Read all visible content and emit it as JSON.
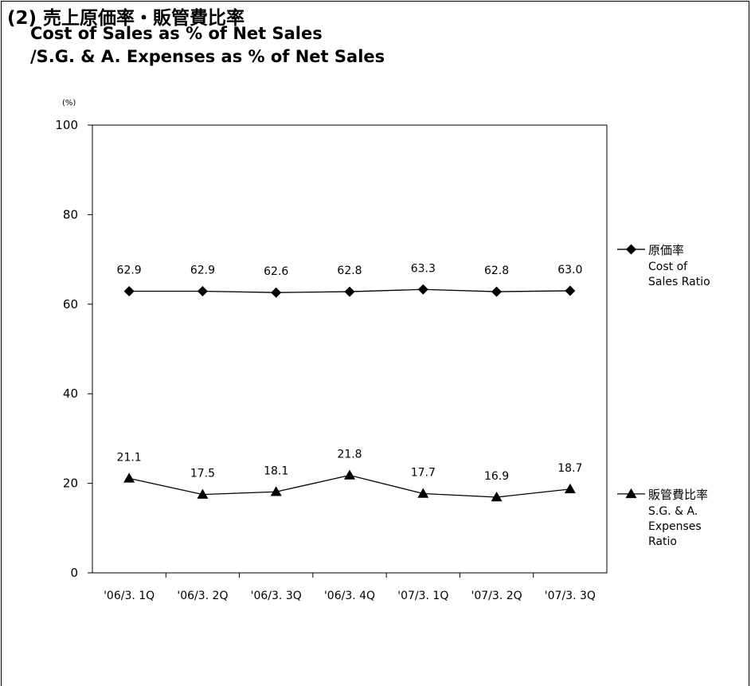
{
  "title": {
    "jp": "(2) 売上原価率・販管費比率",
    "en_line1": "Cost of Sales as % of Net Sales",
    "en_line2": "/S.G. & A. Expenses as % of Net Sales"
  },
  "chart_data": {
    "type": "line",
    "y_unit": "(%)",
    "ylim": [
      0,
      100
    ],
    "yticks": [
      0,
      20,
      40,
      60,
      80,
      100
    ],
    "grid": false,
    "legend_position": "right",
    "categories": [
      "'06/3. 1Q",
      "'06/3. 2Q",
      "'06/3. 3Q",
      "'06/3. 4Q",
      "'07/3. 1Q",
      "'07/3. 2Q",
      "'07/3. 3Q"
    ],
    "series": [
      {
        "name_jp": "原価率",
        "name_en_lines": [
          "Cost of",
          "Sales Ratio"
        ],
        "marker": "diamond",
        "values": [
          62.9,
          62.9,
          62.6,
          62.8,
          63.3,
          62.8,
          63.0
        ],
        "labels": [
          "62.9",
          "62.9",
          "62.6",
          "62.8",
          "63.3",
          "62.8",
          "63.0"
        ]
      },
      {
        "name_jp": "販管費比率",
        "name_en_lines": [
          "S.G. & A.",
          "Expenses",
          "Ratio"
        ],
        "marker": "triangle",
        "values": [
          21.1,
          17.5,
          18.1,
          21.8,
          17.7,
          16.9,
          18.7
        ],
        "labels": [
          "21.1",
          "17.5",
          "18.1",
          "21.8",
          "17.7",
          "16.9",
          "18.7"
        ]
      }
    ],
    "colors": {
      "line": "#000000",
      "background": "#ffffff"
    }
  }
}
